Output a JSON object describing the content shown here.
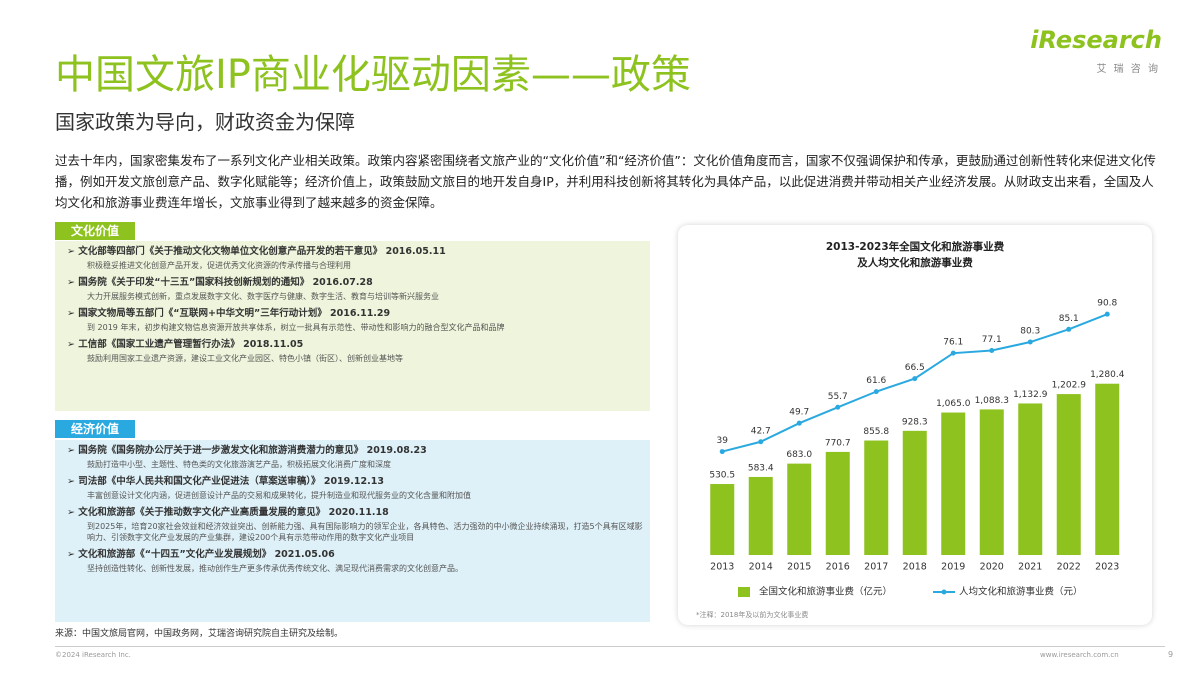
{
  "header": {
    "title": "中国文旅IP商业化驱动因素——政策",
    "subtitle": "国家政策为导向，财政资金为保障",
    "logo": "iResearch",
    "logo_sub": "艾 瑞 咨 询"
  },
  "intro": "过去十年内，国家密集发布了一系列文化产业相关政策。政策内容紧密围绕者文旅产业的“文化价值”和“经济价值”：文化价值角度而言，国家不仅强调保护和传承，更鼓励通过创新性转化来促进文化传播，例如开发文旅创意产品、数字化赋能等；经济价值上，政策鼓励文旅目的地开发自身IP，并利用科技创新将其转化为具体产品，以此促进消费并带动相关产业经济发展。从财政支出来看，全国及人均文化和旅游事业费连年增长，文旅事业得到了越来越多的资金保障。",
  "sections": [
    {
      "label": "文化价值",
      "items": [
        {
          "title": "文化部等四部门《关于推动文化文物单位文化创意产品开发的若干意见》 2016.05.11",
          "detail": "积极稳妥推进文化创意产品开发，促进优秀文化资源的传承传播与合理利用"
        },
        {
          "title": "国务院《关于印发“十三五”国家科技创新规划的通知》 2016.07.28",
          "detail": "大力开展服务模式创新，重点发展数字文化、数字医疗与健康、数字生活、教育与培训等新兴服务业"
        },
        {
          "title": "国家文物局等五部门《“互联网+中华文明”三年行动计划》 2016.11.29",
          "detail": "到 2019 年末，初步构建文物信息资源开放共享体系，树立一批具有示范性、带动性和影响力的融合型文化产品和品牌"
        },
        {
          "title": "工信部《国家工业遗产管理暂行办法》 2018.11.05",
          "detail": "鼓励利用国家工业遗产资源，建设工业文化产业园区、特色小镇（街区）、创新创业基地等"
        }
      ]
    },
    {
      "label": "经济价值",
      "items": [
        {
          "title": "国务院《国务院办公厅关于进一步激发文化和旅游消费潜力的意见》 2019.08.23",
          "detail": "鼓励打造中小型、主题性、特色类的文化旅游演艺产品，积极拓展文化消费广度和深度"
        },
        {
          "title": "司法部《中华人民共和国文化产业促进法（草案送审稿）》 2019.12.13",
          "detail": "丰富创意设计文化内涵，促进创意设计产品的交易和成果转化，提升制造业和现代服务业的文化含量和附加值"
        },
        {
          "title": "文化和旅游部《关于推动数字文化产业高质量发展的意见》 2020.11.18",
          "detail": "到2025年，培育20家社会效益和经济效益突出、创新能力强、具有国际影响力的领军企业，各具特色、活力强劲的中小微企业持续涌现，打造5个具有区域影响力、引领数字文化产业发展的产业集群，建设200个具有示范带动作用的数字文化产业项目"
        },
        {
          "title": "文化和旅游部《“十四五”文化产业发展规划》 2021.05.06",
          "detail": "坚持创造性转化、创新性发展，推动创作生产更多传承优秀传统文化、满足现代消费需求的文化创意产品。"
        }
      ]
    }
  ],
  "source": "来源：中国文旅局官网，中国政务网，艾瑞咨询研究院自主研究及绘制。",
  "footer": {
    "copyright": "©2024 iResearch Inc.",
    "url": "www.iresearch.com.cn",
    "page": "9"
  },
  "chart_data": {
    "type": "bar",
    "title": [
      "2013-2023年全国文化和旅游事业费",
      "及人均文化和旅游事业费"
    ],
    "categories": [
      "2013",
      "2014",
      "2015",
      "2016",
      "2017",
      "2018",
      "2019",
      "2020",
      "2021",
      "2022",
      "2023"
    ],
    "series": [
      {
        "name": "全国文化和旅游事业费（亿元）",
        "type": "bar",
        "color": "#8dc21f",
        "values": [
          530.5,
          583.4,
          683.0,
          770.7,
          855.8,
          928.3,
          1065.0,
          1088.3,
          1132.9,
          1202.9,
          1280.4
        ],
        "value_labels": [
          "530.5",
          "583.4",
          "683.0",
          "770.7",
          "855.8",
          "928.3",
          "1,065.0",
          "1,088.3",
          "1,132.9",
          "1,202.9",
          "1,280.4"
        ]
      },
      {
        "name": "人均文化和旅游事业费（元）",
        "type": "line",
        "axis": "y2",
        "color": "#2aa9e0",
        "values": [
          39,
          42.7,
          49.7,
          55.7,
          61.6,
          66.5,
          76.1,
          77.1,
          80.3,
          85.1,
          90.8
        ]
      }
    ],
    "ylim": [
      0,
      2280
    ],
    "y2lim": [
      0,
      115
    ],
    "note": "*注释：2018年及以前为文化事业费"
  }
}
